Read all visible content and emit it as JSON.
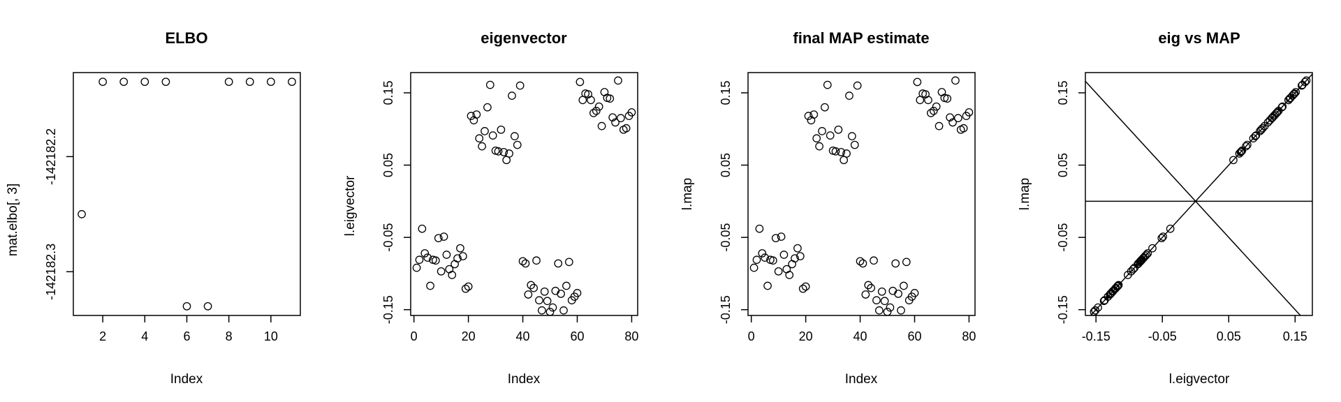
{
  "chart_data": [
    {
      "type": "scatter",
      "title": "ELBO",
      "xlabel": "Index",
      "ylabel": "mat.elbo[, 3]",
      "xlim": [
        0.6,
        11.4
      ],
      "ylim": [
        -142182.338,
        -142182.127
      ],
      "x_ticks": [
        2,
        4,
        6,
        8,
        10
      ],
      "x_tick_labels": [
        "2",
        "4",
        "6",
        "8",
        "10"
      ],
      "y_ticks": [
        -142182.3,
        -142182.2
      ],
      "y_tick_labels": [
        "-142182.3",
        "-142182.2"
      ],
      "series": [
        {
          "x": [
            1,
            2,
            3,
            4,
            5,
            6,
            7,
            8,
            9,
            10,
            11
          ],
          "y": [
            -142182.25,
            -142182.135,
            -142182.135,
            -142182.135,
            -142182.135,
            -142182.33,
            -142182.33,
            -142182.135,
            -142182.135,
            -142182.135,
            -142182.135
          ]
        }
      ]
    },
    {
      "type": "scatter",
      "title": "eigenvector",
      "xlabel": "Index",
      "ylabel": "l.eigvector",
      "xlim": [
        -1.2,
        82.2
      ],
      "ylim": [
        -0.158,
        0.178
      ],
      "x_ticks": [
        0,
        20,
        40,
        60,
        80
      ],
      "x_tick_labels": [
        "0",
        "20",
        "40",
        "60",
        "80"
      ],
      "y_ticks": [
        -0.15,
        -0.05,
        0.05,
        0.15
      ],
      "y_tick_labels": [
        "-0.15",
        "-0.05",
        "0.05",
        "0.15"
      ],
      "series": [
        {
          "x": [
            1,
            2,
            3,
            4,
            5,
            6,
            7,
            8,
            9,
            10,
            11,
            12,
            13,
            14,
            15,
            16,
            17,
            18,
            19,
            20,
            21,
            22,
            23,
            24,
            25,
            26,
            27,
            28,
            29,
            30,
            31,
            32,
            33,
            34,
            35,
            36,
            37,
            38,
            39,
            40,
            41,
            42,
            43,
            44,
            45,
            46,
            47,
            48,
            49,
            50,
            51,
            52,
            53,
            54,
            55,
            56,
            57,
            58,
            59,
            60,
            61,
            62,
            63,
            64,
            65,
            66,
            67,
            68,
            69,
            70,
            71,
            72,
            73,
            74,
            75,
            76,
            77,
            78,
            79,
            80
          ],
          "y": [
            -0.092,
            -0.081,
            -0.038,
            -0.072,
            -0.078,
            -0.117,
            -0.081,
            -0.082,
            -0.051,
            -0.097,
            -0.049,
            -0.074,
            -0.094,
            -0.102,
            -0.087,
            -0.079,
            -0.065,
            -0.076,
            -0.121,
            -0.118,
            0.118,
            0.112,
            0.12,
            0.087,
            0.076,
            0.097,
            0.13,
            0.161,
            0.091,
            0.07,
            0.069,
            0.099,
            0.068,
            0.057,
            0.066,
            0.146,
            0.09,
            0.078,
            0.16,
            -0.083,
            -0.086,
            -0.129,
            -0.116,
            -0.12,
            -0.082,
            -0.137,
            -0.151,
            -0.125,
            -0.138,
            -0.153,
            -0.147,
            -0.124,
            -0.086,
            -0.128,
            -0.151,
            -0.117,
            -0.084,
            -0.137,
            -0.132,
            -0.127,
            0.165,
            0.14,
            0.149,
            0.148,
            0.14,
            0.122,
            0.125,
            0.131,
            0.104,
            0.151,
            0.143,
            0.142,
            0.116,
            0.109,
            0.167,
            0.115,
            0.099,
            0.101,
            0.118,
            0.123
          ]
        }
      ]
    },
    {
      "type": "scatter",
      "title": "final MAP estimate",
      "xlabel": "Index",
      "ylabel": "l.map",
      "xlim": [
        -1.2,
        82.2
      ],
      "ylim": [
        -0.158,
        0.178
      ],
      "x_ticks": [
        0,
        20,
        40,
        60,
        80
      ],
      "x_tick_labels": [
        "0",
        "20",
        "40",
        "60",
        "80"
      ],
      "y_ticks": [
        -0.15,
        -0.05,
        0.05,
        0.15
      ],
      "y_tick_labels": [
        "-0.15",
        "-0.05",
        "0.05",
        "0.15"
      ],
      "series": [
        {
          "x": [
            1,
            2,
            3,
            4,
            5,
            6,
            7,
            8,
            9,
            10,
            11,
            12,
            13,
            14,
            15,
            16,
            17,
            18,
            19,
            20,
            21,
            22,
            23,
            24,
            25,
            26,
            27,
            28,
            29,
            30,
            31,
            32,
            33,
            34,
            35,
            36,
            37,
            38,
            39,
            40,
            41,
            42,
            43,
            44,
            45,
            46,
            47,
            48,
            49,
            50,
            51,
            52,
            53,
            54,
            55,
            56,
            57,
            58,
            59,
            60,
            61,
            62,
            63,
            64,
            65,
            66,
            67,
            68,
            69,
            70,
            71,
            72,
            73,
            74,
            75,
            76,
            77,
            78,
            79,
            80
          ],
          "y": [
            -0.092,
            -0.081,
            -0.038,
            -0.072,
            -0.078,
            -0.117,
            -0.081,
            -0.082,
            -0.051,
            -0.097,
            -0.049,
            -0.074,
            -0.094,
            -0.102,
            -0.087,
            -0.079,
            -0.065,
            -0.076,
            -0.121,
            -0.118,
            0.118,
            0.112,
            0.12,
            0.087,
            0.076,
            0.097,
            0.13,
            0.161,
            0.091,
            0.07,
            0.069,
            0.099,
            0.068,
            0.057,
            0.066,
            0.146,
            0.09,
            0.078,
            0.16,
            -0.083,
            -0.086,
            -0.129,
            -0.116,
            -0.12,
            -0.082,
            -0.137,
            -0.151,
            -0.125,
            -0.138,
            -0.153,
            -0.147,
            -0.124,
            -0.086,
            -0.128,
            -0.151,
            -0.117,
            -0.084,
            -0.137,
            -0.132,
            -0.127,
            0.165,
            0.14,
            0.149,
            0.148,
            0.14,
            0.122,
            0.125,
            0.131,
            0.104,
            0.151,
            0.143,
            0.142,
            0.116,
            0.109,
            0.167,
            0.115,
            0.099,
            0.101,
            0.118,
            0.123
          ]
        }
      ]
    },
    {
      "type": "scatter",
      "title": "eig vs MAP",
      "xlabel": "l.eigvector",
      "ylabel": "l.map",
      "xlim": [
        -0.166,
        0.176
      ],
      "ylim": [
        -0.158,
        0.178
      ],
      "x_ticks": [
        -0.15,
        -0.05,
        0.05,
        0.15
      ],
      "x_tick_labels": [
        "-0.15",
        "-0.05",
        "0.05",
        "0.15"
      ],
      "y_ticks": [
        -0.15,
        -0.05,
        0.05,
        0.15
      ],
      "y_tick_labels": [
        "-0.15",
        "-0.05",
        "0.05",
        "0.15"
      ],
      "reference_lines": [
        {
          "type": "abline",
          "intercept": 0,
          "slope": 1
        },
        {
          "type": "abline",
          "intercept": 0,
          "slope": -1
        },
        {
          "type": "hline",
          "y": 0
        }
      ],
      "series": [
        {
          "x": [
            -0.092,
            -0.081,
            -0.038,
            -0.072,
            -0.078,
            -0.117,
            -0.081,
            -0.082,
            -0.051,
            -0.097,
            -0.049,
            -0.074,
            -0.094,
            -0.102,
            -0.087,
            -0.079,
            -0.065,
            -0.076,
            -0.121,
            -0.118,
            0.118,
            0.112,
            0.12,
            0.087,
            0.076,
            0.097,
            0.13,
            0.161,
            0.091,
            0.07,
            0.069,
            0.099,
            0.068,
            0.057,
            0.066,
            0.146,
            0.09,
            0.078,
            0.16,
            -0.083,
            -0.086,
            -0.129,
            -0.116,
            -0.12,
            -0.082,
            -0.137,
            -0.151,
            -0.125,
            -0.138,
            -0.153,
            -0.147,
            -0.124,
            -0.086,
            -0.128,
            -0.151,
            -0.117,
            -0.084,
            -0.137,
            -0.132,
            -0.127,
            0.165,
            0.14,
            0.149,
            0.148,
            0.14,
            0.122,
            0.125,
            0.131,
            0.104,
            0.151,
            0.143,
            0.142,
            0.116,
            0.109,
            0.167,
            0.115,
            0.099,
            0.101,
            0.118,
            0.123
          ],
          "y": [
            -0.092,
            -0.081,
            -0.038,
            -0.072,
            -0.078,
            -0.117,
            -0.081,
            -0.082,
            -0.051,
            -0.097,
            -0.049,
            -0.074,
            -0.094,
            -0.102,
            -0.087,
            -0.079,
            -0.065,
            -0.076,
            -0.121,
            -0.118,
            0.118,
            0.112,
            0.12,
            0.087,
            0.076,
            0.097,
            0.13,
            0.161,
            0.091,
            0.07,
            0.069,
            0.099,
            0.068,
            0.057,
            0.066,
            0.146,
            0.09,
            0.078,
            0.16,
            -0.083,
            -0.086,
            -0.129,
            -0.116,
            -0.12,
            -0.082,
            -0.137,
            -0.151,
            -0.125,
            -0.138,
            -0.153,
            -0.147,
            -0.124,
            -0.086,
            -0.128,
            -0.151,
            -0.117,
            -0.084,
            -0.137,
            -0.132,
            -0.127,
            0.165,
            0.14,
            0.149,
            0.148,
            0.14,
            0.122,
            0.125,
            0.131,
            0.104,
            0.151,
            0.143,
            0.142,
            0.116,
            0.109,
            0.167,
            0.115,
            0.099,
            0.101,
            0.118,
            0.123
          ]
        }
      ]
    }
  ]
}
